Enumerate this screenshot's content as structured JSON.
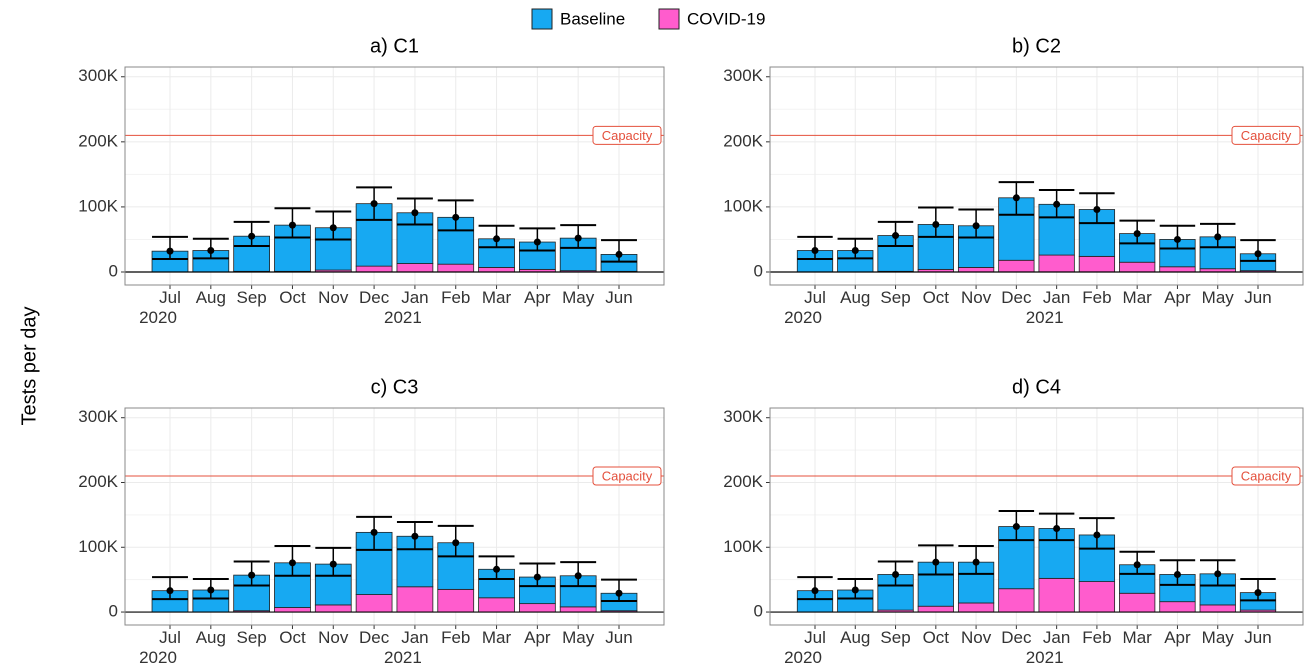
{
  "ylabel": "Tests per day",
  "chart_data": [
    {
      "type": "bar",
      "stacked": true,
      "title": "a) C1",
      "categories": [
        "Jul\n2020",
        "Aug",
        "Sep",
        "Oct",
        "Nov",
        "Dec",
        "Jan\n2021",
        "Feb",
        "Mar",
        "Apr",
        "May",
        "Jun"
      ],
      "series": [
        {
          "name": "Baseline",
          "color": "#17a9f2",
          "values": [
            32000,
            33000,
            54000,
            71000,
            65000,
            96000,
            78000,
            72000,
            44000,
            42000,
            50000,
            26000
          ]
        },
        {
          "name": "COVID-19",
          "color": "#ff5ccd",
          "values": [
            0,
            0,
            1000,
            1000,
            3000,
            9000,
            13000,
            12000,
            7000,
            4000,
            2000,
            1000
          ]
        }
      ],
      "error_low": [
        20000,
        21000,
        40000,
        53000,
        50000,
        80000,
        73000,
        64000,
        38000,
        33000,
        37000,
        16000
      ],
      "error_high": [
        54000,
        51000,
        77000,
        98000,
        93000,
        130000,
        113000,
        110000,
        71000,
        67000,
        72000,
        49000
      ],
      "ylim": [
        -20000,
        315000
      ],
      "yticks": [
        0,
        {
          "value": 100000,
          "label": "100K"
        },
        {
          "value": 200000,
          "label": "200K"
        },
        {
          "value": 300000,
          "label": "300K"
        }
      ],
      "hline": {
        "value": 210000,
        "label": "Capacity",
        "color": "#e4503c"
      },
      "grid": true
    },
    {
      "type": "bar",
      "stacked": true,
      "title": "b) C2",
      "categories": [
        "Jul\n2020",
        "Aug",
        "Sep",
        "Oct",
        "Nov",
        "Dec",
        "Jan\n2021",
        "Feb",
        "Mar",
        "Apr",
        "May",
        "Jun"
      ],
      "series": [
        {
          "name": "Baseline",
          "color": "#17a9f2",
          "values": [
            33000,
            33000,
            55000,
            69000,
            64000,
            96000,
            78000,
            72000,
            44000,
            42000,
            49000,
            26000
          ]
        },
        {
          "name": "COVID-19",
          "color": "#ff5ccd",
          "values": [
            0,
            0,
            1000,
            4000,
            7000,
            18000,
            26000,
            24000,
            15000,
            8000,
            5000,
            2000
          ]
        }
      ],
      "error_low": [
        20000,
        21000,
        40000,
        54000,
        53000,
        88000,
        84000,
        75000,
        44000,
        36000,
        38000,
        17000
      ],
      "error_high": [
        54000,
        51000,
        77000,
        99000,
        96000,
        138000,
        126000,
        121000,
        79000,
        71000,
        74000,
        49000
      ],
      "ylim": [
        -20000,
        315000
      ],
      "yticks": [
        0,
        {
          "value": 100000,
          "label": "100K"
        },
        {
          "value": 200000,
          "label": "200K"
        },
        {
          "value": 300000,
          "label": "300K"
        }
      ],
      "hline": {
        "value": 210000,
        "label": "Capacity",
        "color": "#e4503c"
      },
      "grid": true
    },
    {
      "type": "bar",
      "stacked": true,
      "title": "c) C3",
      "categories": [
        "Jul\n2020",
        "Aug",
        "Sep",
        "Oct",
        "Nov",
        "Dec",
        "Jan\n2021",
        "Feb",
        "Mar",
        "Apr",
        "May",
        "Jun"
      ],
      "series": [
        {
          "name": "Baseline",
          "color": "#17a9f2",
          "values": [
            33000,
            34000,
            55000,
            69000,
            63000,
            96000,
            78000,
            72000,
            44000,
            41000,
            48000,
            27000
          ]
        },
        {
          "name": "COVID-19",
          "color": "#ff5ccd",
          "values": [
            0,
            0,
            2000,
            7000,
            11000,
            27000,
            39000,
            35000,
            22000,
            13000,
            8000,
            2000
          ]
        }
      ],
      "error_low": [
        20000,
        21000,
        41000,
        56000,
        56000,
        96000,
        97000,
        86000,
        51000,
        40000,
        40000,
        17000
      ],
      "error_high": [
        54000,
        51000,
        78000,
        102000,
        99000,
        147000,
        139000,
        133000,
        86000,
        75000,
        77000,
        50000
      ],
      "ylim": [
        -20000,
        315000
      ],
      "yticks": [
        0,
        {
          "value": 100000,
          "label": "100K"
        },
        {
          "value": 200000,
          "label": "200K"
        },
        {
          "value": 300000,
          "label": "300K"
        }
      ],
      "hline": {
        "value": 210000,
        "label": "Capacity",
        "color": "#e4503c"
      },
      "grid": true
    },
    {
      "type": "bar",
      "stacked": true,
      "title": "d) C4",
      "categories": [
        "Jul\n2020",
        "Aug",
        "Sep",
        "Oct",
        "Nov",
        "Dec",
        "Jan\n2021",
        "Feb",
        "Mar",
        "Apr",
        "May",
        "Jun"
      ],
      "series": [
        {
          "name": "Baseline",
          "color": "#17a9f2",
          "values": [
            33000,
            34000,
            55000,
            68000,
            63000,
            96000,
            77000,
            72000,
            44000,
            42000,
            48000,
            27000
          ]
        },
        {
          "name": "COVID-19",
          "color": "#ff5ccd",
          "values": [
            0,
            0,
            3000,
            9000,
            14000,
            36000,
            52000,
            47000,
            29000,
            16000,
            11000,
            3000
          ]
        }
      ],
      "error_low": [
        20000,
        21000,
        41000,
        58000,
        59000,
        111000,
        111000,
        98000,
        59000,
        42000,
        41000,
        18000
      ],
      "error_high": [
        54000,
        51000,
        78000,
        103000,
        102000,
        156000,
        152000,
        145000,
        93000,
        80000,
        80000,
        51000
      ],
      "ylim": [
        -20000,
        315000
      ],
      "yticks": [
        0,
        {
          "value": 100000,
          "label": "100K"
        },
        {
          "value": 200000,
          "label": "200K"
        },
        {
          "value": 300000,
          "label": "300K"
        }
      ],
      "hline": {
        "value": 210000,
        "label": "Capacity",
        "color": "#e4503c"
      },
      "grid": true
    }
  ]
}
